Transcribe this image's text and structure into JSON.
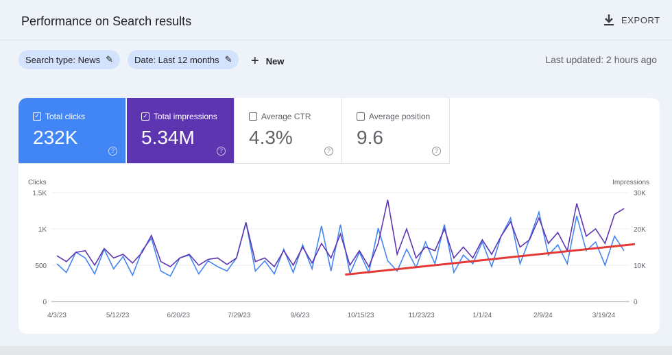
{
  "header": {
    "title": "Performance on Search results",
    "export_label": "EXPORT"
  },
  "filters": {
    "search_type": "Search type: News",
    "date": "Date: Last 12 months",
    "new_label": "New",
    "last_updated": "Last updated: 2 hours ago"
  },
  "metrics": [
    {
      "label": "Total clicks",
      "value": "232K",
      "checked": true,
      "color": "#4285f4"
    },
    {
      "label": "Total impressions",
      "value": "5.34M",
      "checked": true,
      "color": "#5e35b1"
    },
    {
      "label": "Average CTR",
      "value": "4.3%",
      "checked": false
    },
    {
      "label": "Average position",
      "value": "9.6",
      "checked": false
    }
  ],
  "chart_data": {
    "type": "line",
    "ylabel_left": "Clicks",
    "ylabel_right": "Impressions",
    "y_left_ticks": [
      "0",
      "500",
      "1K",
      "1.5K"
    ],
    "ylim_left": [
      0,
      1500
    ],
    "y_right_ticks": [
      "0",
      "10K",
      "20K",
      "30K"
    ],
    "ylim_right": [
      0,
      30000
    ],
    "x_ticks": [
      "4/3/23",
      "5/12/23",
      "6/20/23",
      "7/29/23",
      "9/6/23",
      "10/15/23",
      "11/23/23",
      "1/1/24",
      "2/9/24",
      "3/19/24"
    ],
    "x_range": [
      "4/3/23",
      "4/1/24"
    ],
    "grid": true,
    "series": [
      {
        "name": "Clicks",
        "axis": "left",
        "color": "#4285f4",
        "values": [
          520,
          400,
          680,
          600,
          380,
          720,
          450,
          620,
          360,
          700,
          870,
          420,
          350,
          600,
          640,
          380,
          560,
          480,
          420,
          600,
          1090,
          420,
          560,
          380,
          720,
          400,
          780,
          450,
          1040,
          420,
          1060,
          380,
          680,
          400,
          1010,
          560,
          420,
          720,
          470,
          820,
          520,
          1060,
          400,
          640,
          520,
          820,
          480,
          900,
          1150,
          520,
          860,
          1230,
          640,
          780,
          520,
          1180,
          700,
          820,
          500,
          900,
          700
        ]
      },
      {
        "name": "Impressions",
        "axis": "right",
        "color": "#5e35b1",
        "values": [
          12600,
          11000,
          13500,
          14000,
          10000,
          14600,
          12000,
          13000,
          10600,
          13500,
          18200,
          11000,
          9600,
          12000,
          13000,
          10000,
          11600,
          12000,
          10200,
          12000,
          21800,
          11000,
          12000,
          9600,
          14000,
          10000,
          15000,
          10600,
          16000,
          12000,
          18600,
          10000,
          14000,
          9600,
          16000,
          28000,
          13000,
          20000,
          12000,
          15000,
          14000,
          20000,
          12000,
          15000,
          12000,
          17000,
          13000,
          18000,
          22000,
          15000,
          17000,
          23000,
          16000,
          19000,
          14000,
          27000,
          18000,
          20000,
          16000,
          24000,
          25600
        ]
      }
    ],
    "annotation": {
      "type": "trend-line",
      "color": "#e53935",
      "from": {
        "x": "10/5/23",
        "y": 370
      },
      "to": {
        "x": "4/8/24",
        "y": 790
      }
    }
  }
}
